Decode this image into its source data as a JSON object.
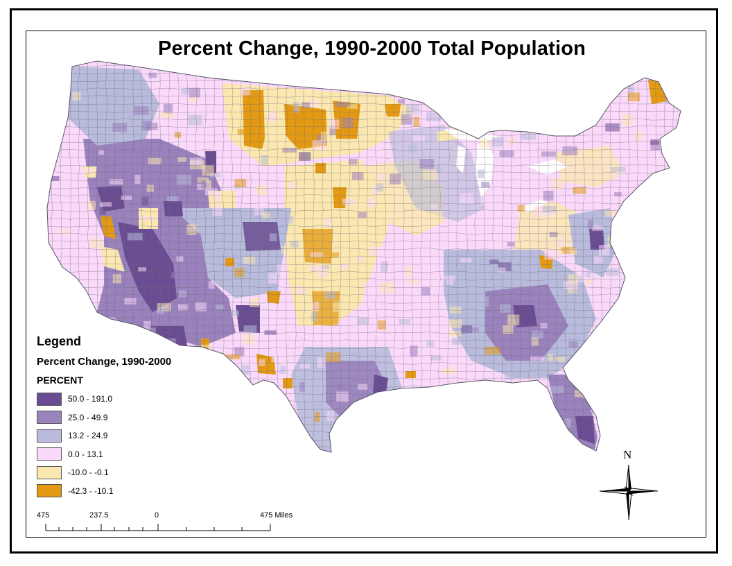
{
  "title": "Percent Change, 1990-2000 Total Population",
  "legend": {
    "heading": "Legend",
    "layer_name": "Percent Change, 1990-2000",
    "field_name": "PERCENT",
    "classes": [
      {
        "label": "50.0 - 191.0",
        "color": "#6a4c93"
      },
      {
        "label": "25.0 - 49.9",
        "color": "#9a82bd"
      },
      {
        "label": "13.2 - 24.9",
        "color": "#b8bbdb"
      },
      {
        "label": "0.0 - 13.1",
        "color": "#fbd9fb"
      },
      {
        "label": "-10.0 - -0.1",
        "color": "#fbe7b0"
      },
      {
        "label": "-42.3 - -10.1",
        "color": "#e39a12"
      }
    ]
  },
  "scale_bar": {
    "labels": [
      "475",
      "237.5",
      "0",
      "475 Miles"
    ]
  },
  "north_arrow": {
    "letter": "N"
  },
  "colors": {
    "frame": "#000000",
    "county_border": "#6b6b78"
  }
}
